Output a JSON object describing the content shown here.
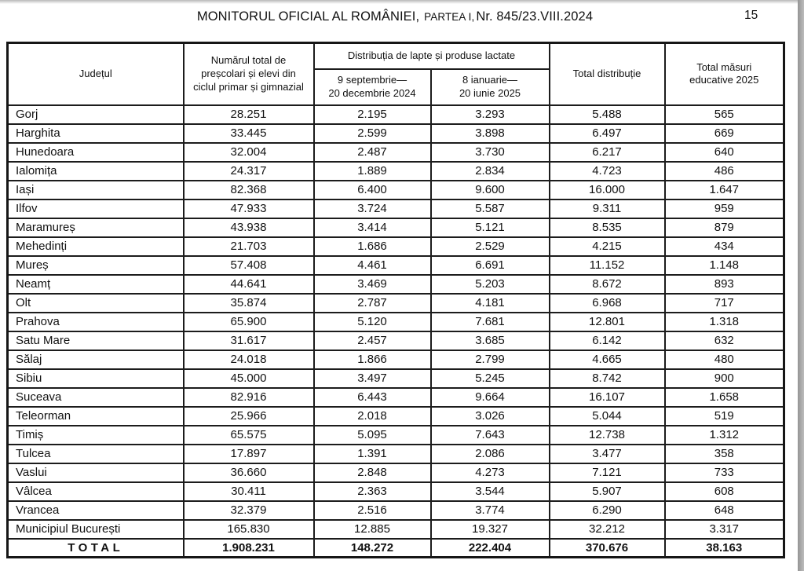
{
  "page_header": {
    "title_main": "MONITORUL OFICIAL AL ROMÂNIEI,",
    "title_part": "PARTEA I,",
    "title_issue": "Nr. 845/23.VIII.2024",
    "page_number": "15"
  },
  "table": {
    "header": {
      "county": "Județul",
      "pupils": "Numărul total de\npreșcolari și elevi din\nciclul primar și gimnazial",
      "distribution_group": "Distribuția de lapte și produse lactate",
      "period_1": "9 septembrie—\n20 decembrie 2024",
      "period_2": "8 ianuarie—\n20 iunie 2025",
      "total_distribution": "Total distribuție",
      "total_measures": "Total măsuri\neducative 2025"
    },
    "rows": [
      {
        "county": "Gorj",
        "pupils": "28.251",
        "period_1": "2.195",
        "period_2": "3.293",
        "total_distribution": "5.488",
        "total_measures": "565"
      },
      {
        "county": "Harghita",
        "pupils": "33.445",
        "period_1": "2.599",
        "period_2": "3.898",
        "total_distribution": "6.497",
        "total_measures": "669"
      },
      {
        "county": "Hunedoara",
        "pupils": "32.004",
        "period_1": "2.487",
        "period_2": "3.730",
        "total_distribution": "6.217",
        "total_measures": "640"
      },
      {
        "county": "Ialomița",
        "pupils": "24.317",
        "period_1": "1.889",
        "period_2": "2.834",
        "total_distribution": "4.723",
        "total_measures": "486"
      },
      {
        "county": "Iași",
        "pupils": "82.368",
        "period_1": "6.400",
        "period_2": "9.600",
        "total_distribution": "16.000",
        "total_measures": "1.647"
      },
      {
        "county": "Ilfov",
        "pupils": "47.933",
        "period_1": "3.724",
        "period_2": "5.587",
        "total_distribution": "9.311",
        "total_measures": "959"
      },
      {
        "county": "Maramureș",
        "pupils": "43.938",
        "period_1": "3.414",
        "period_2": "5.121",
        "total_distribution": "8.535",
        "total_measures": "879"
      },
      {
        "county": "Mehedinți",
        "pupils": "21.703",
        "period_1": "1.686",
        "period_2": "2.529",
        "total_distribution": "4.215",
        "total_measures": "434"
      },
      {
        "county": "Mureș",
        "pupils": "57.408",
        "period_1": "4.461",
        "period_2": "6.691",
        "total_distribution": "11.152",
        "total_measures": "1.148"
      },
      {
        "county": "Neamț",
        "pupils": "44.641",
        "period_1": "3.469",
        "period_2": "5.203",
        "total_distribution": "8.672",
        "total_measures": "893"
      },
      {
        "county": "Olt",
        "pupils": "35.874",
        "period_1": "2.787",
        "period_2": "4.181",
        "total_distribution": "6.968",
        "total_measures": "717"
      },
      {
        "county": "Prahova",
        "pupils": "65.900",
        "period_1": "5.120",
        "period_2": "7.681",
        "total_distribution": "12.801",
        "total_measures": "1.318"
      },
      {
        "county": "Satu Mare",
        "pupils": "31.617",
        "period_1": "2.457",
        "period_2": "3.685",
        "total_distribution": "6.142",
        "total_measures": "632"
      },
      {
        "county": "Sălaj",
        "pupils": "24.018",
        "period_1": "1.866",
        "period_2": "2.799",
        "total_distribution": "4.665",
        "total_measures": "480"
      },
      {
        "county": "Sibiu",
        "pupils": "45.000",
        "period_1": "3.497",
        "period_2": "5.245",
        "total_distribution": "8.742",
        "total_measures": "900"
      },
      {
        "county": "Suceava",
        "pupils": "82.916",
        "period_1": "6.443",
        "period_2": "9.664",
        "total_distribution": "16.107",
        "total_measures": "1.658"
      },
      {
        "county": "Teleorman",
        "pupils": "25.966",
        "period_1": "2.018",
        "period_2": "3.026",
        "total_distribution": "5.044",
        "total_measures": "519"
      },
      {
        "county": "Timiș",
        "pupils": "65.575",
        "period_1": "5.095",
        "period_2": "7.643",
        "total_distribution": "12.738",
        "total_measures": "1.312"
      },
      {
        "county": "Tulcea",
        "pupils": "17.897",
        "period_1": "1.391",
        "period_2": "2.086",
        "total_distribution": "3.477",
        "total_measures": "358"
      },
      {
        "county": "Vaslui",
        "pupils": "36.660",
        "period_1": "2.848",
        "period_2": "4.273",
        "total_distribution": "7.121",
        "total_measures": "733"
      },
      {
        "county": "Vâlcea",
        "pupils": "30.411",
        "period_1": "2.363",
        "period_2": "3.544",
        "total_distribution": "5.907",
        "total_measures": "608"
      },
      {
        "county": "Vrancea",
        "pupils": "32.379",
        "period_1": "2.516",
        "period_2": "3.774",
        "total_distribution": "6.290",
        "total_measures": "648"
      },
      {
        "county": "Municipiul București",
        "pupils": "165.830",
        "period_1": "12.885",
        "period_2": "19.327",
        "total_distribution": "32.212",
        "total_measures": "3.317"
      }
    ],
    "total_row": {
      "label": "TOTAL",
      "pupils": "1.908.231",
      "period_1": "148.272",
      "period_2": "222.404",
      "total_distribution": "370.676",
      "total_measures": "38.163"
    }
  }
}
